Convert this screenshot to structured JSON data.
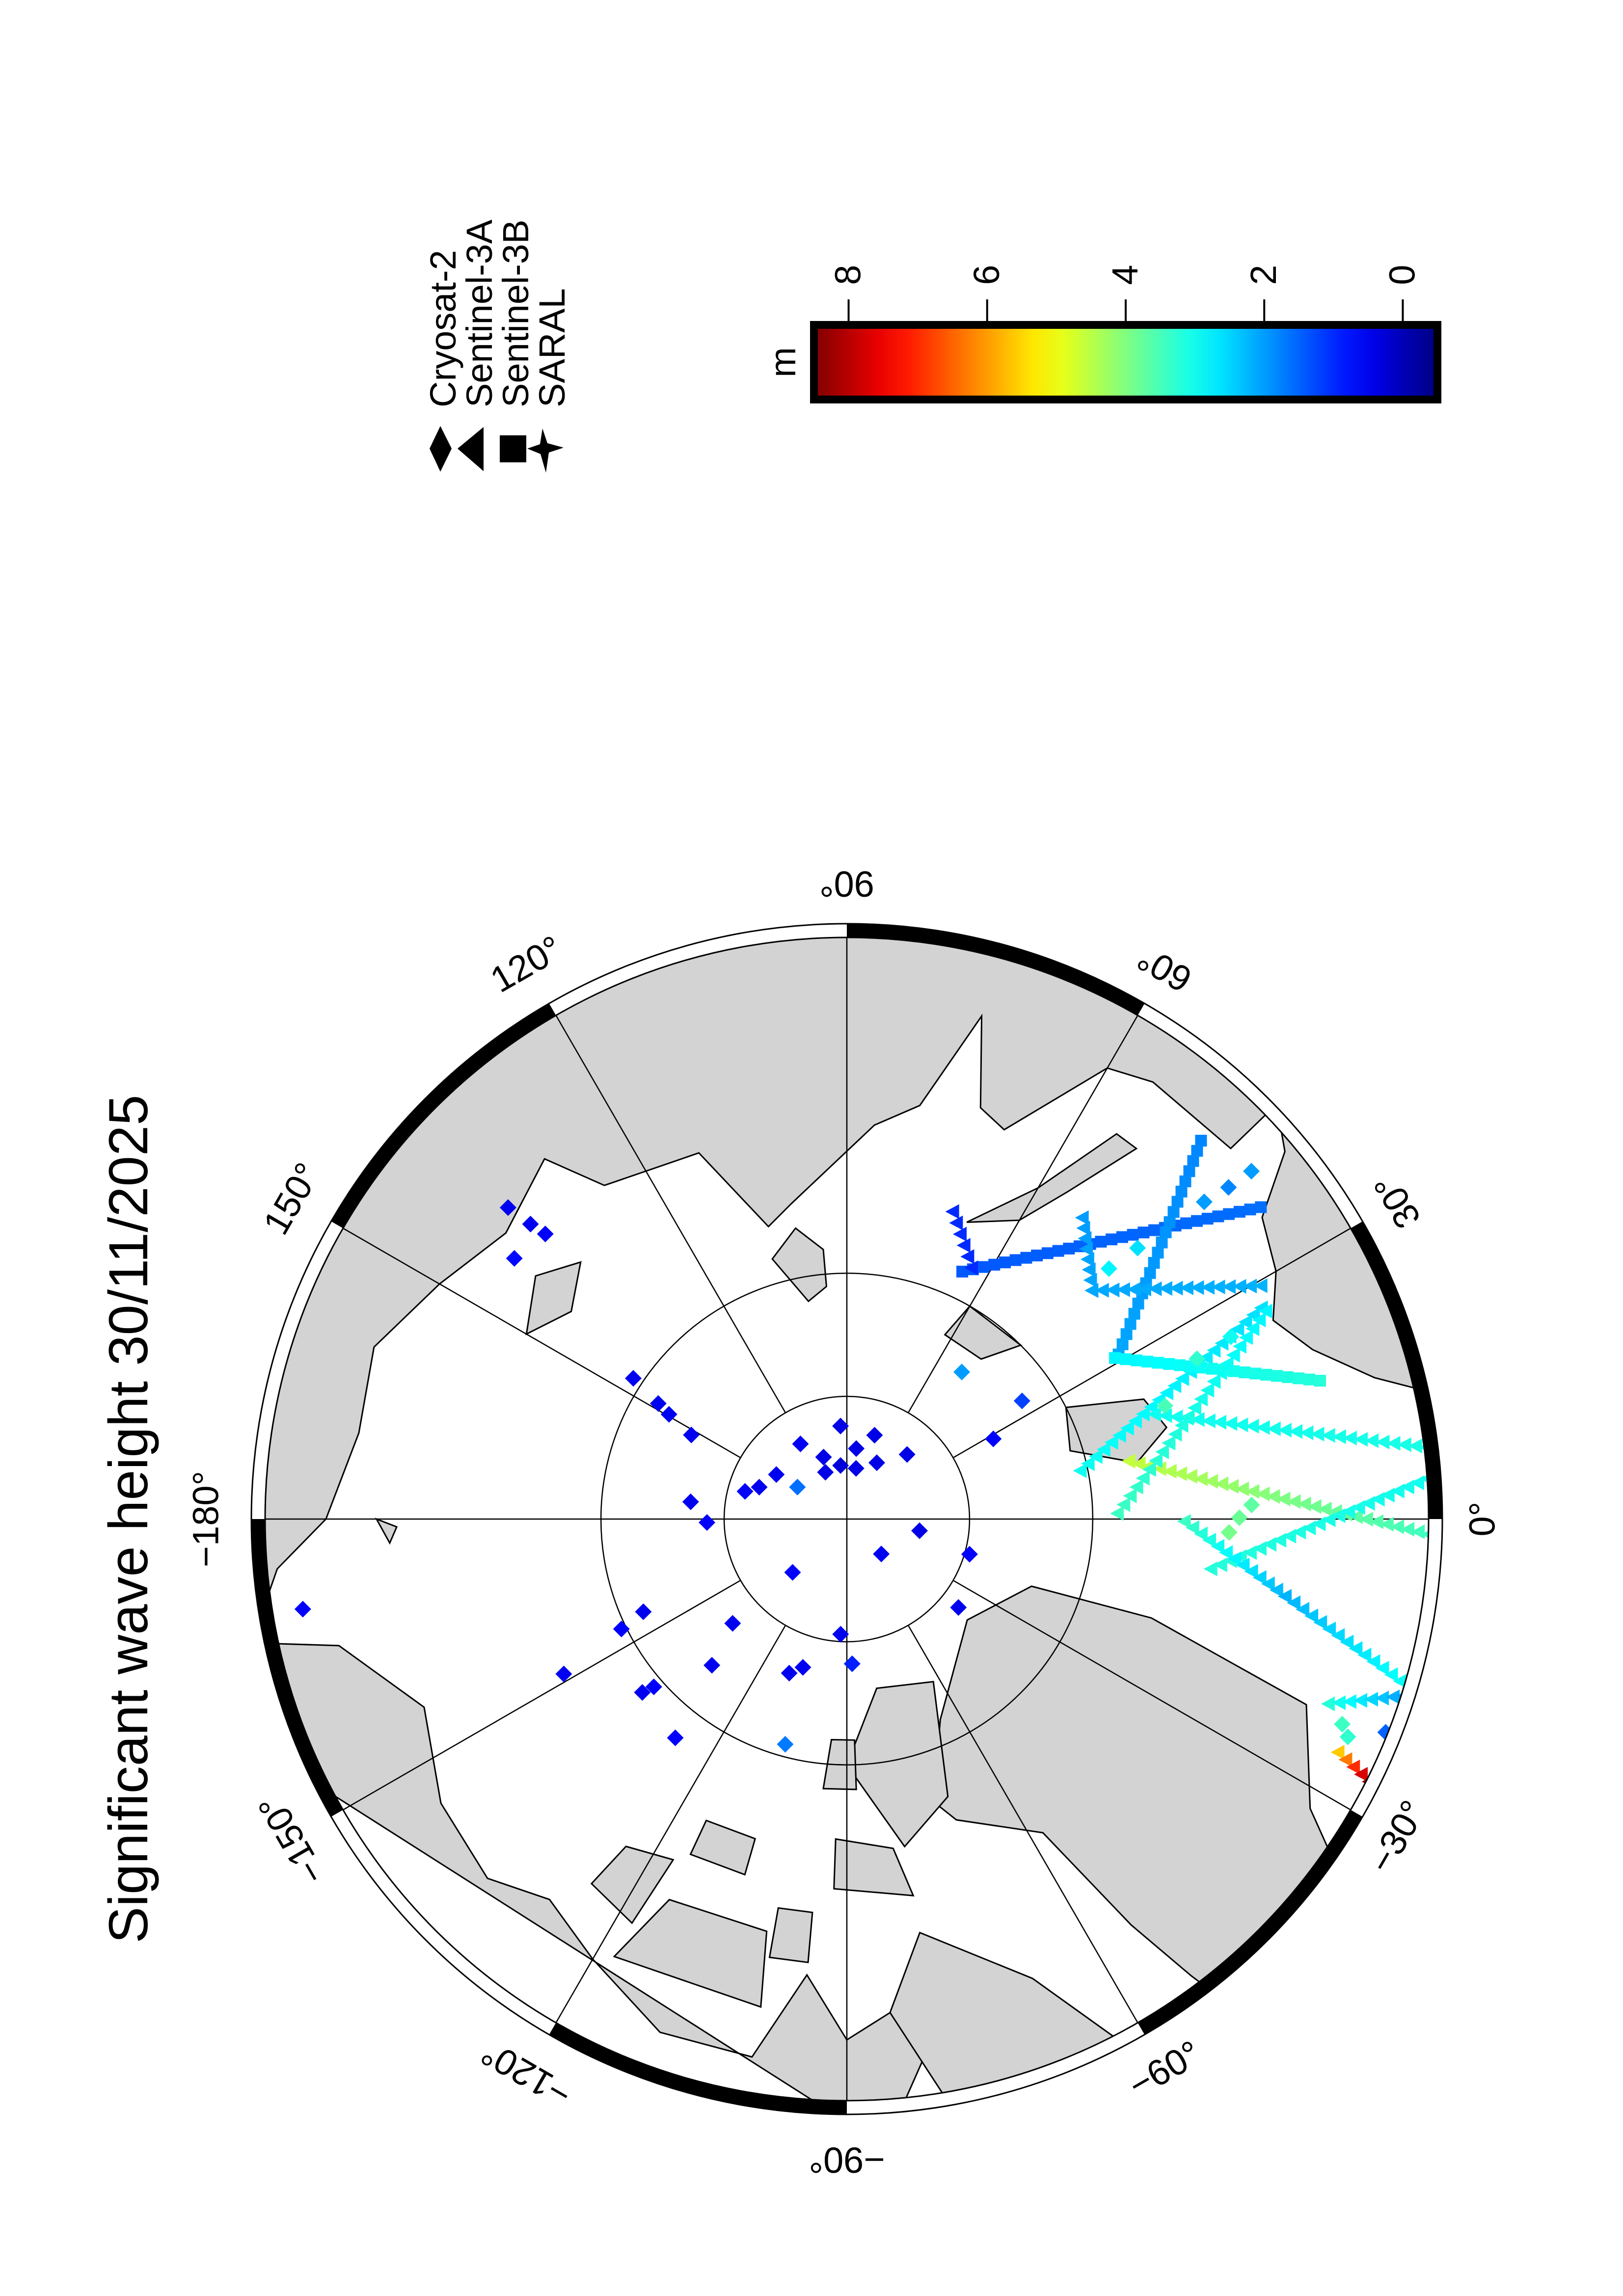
{
  "title": "Significant wave height 30/11/2025",
  "legend": [
    {
      "label": "Cryosat-2",
      "symbol": "diamond"
    },
    {
      "label": "Sentinel-3A",
      "symbol": "triangle"
    },
    {
      "label": "Sentinel-3B",
      "symbol": "square"
    },
    {
      "label": "SARAL",
      "symbol": "star"
    }
  ],
  "colorbar": {
    "unit": "m",
    "colormap": "jet",
    "range": [
      -0.5,
      8.5
    ],
    "ticks": [
      {
        "value": 0,
        "label": "0"
      },
      {
        "value": 2,
        "label": "2"
      },
      {
        "value": 4,
        "label": "4"
      },
      {
        "value": 6,
        "label": "6"
      },
      {
        "value": 8,
        "label": "8"
      }
    ]
  },
  "map": {
    "projection": "north-polar-stereographic",
    "min_latitude": 66.5,
    "parallels": [
      85,
      80
    ],
    "land_color": "#d3d3d3",
    "meridian_labels": [
      {
        "lon": 0,
        "label": "0°"
      },
      {
        "lon": 30,
        "label": "30°"
      },
      {
        "lon": 60,
        "label": "60°"
      },
      {
        "lon": 90,
        "label": "90°"
      },
      {
        "lon": 120,
        "label": "120°"
      },
      {
        "lon": 150,
        "label": "150°"
      },
      {
        "lon": 180,
        "label": "−180°"
      },
      {
        "lon": -150,
        "label": "−150°"
      },
      {
        "lon": -120,
        "label": "−120°"
      },
      {
        "lon": -90,
        "label": "−90°"
      },
      {
        "lon": -60,
        "label": "−60°"
      },
      {
        "lon": -30,
        "label": "−30°"
      }
    ],
    "land": [
      {
        "name": "eurasia",
        "coords": [
          [
            -1,
            60
          ],
          [
            3,
            58
          ],
          [
            6,
            58.2
          ],
          [
            5,
            61
          ],
          [
            10,
            64
          ],
          [
            15,
            68
          ],
          [
            20,
            70
          ],
          [
            25,
            71
          ],
          [
            30,
            70
          ],
          [
            36,
            69.3
          ],
          [
            40,
            67
          ],
          [
            44,
            66
          ],
          [
            44,
            68.5
          ],
          [
            55,
            68.5
          ],
          [
            60,
            69
          ],
          [
            68,
            73
          ],
          [
            72,
            72.5
          ],
          [
            75,
            69
          ],
          [
            80,
            73
          ],
          [
            86,
            74
          ],
          [
            100,
            77
          ],
          [
            105,
            77.7
          ],
          [
            112,
            74
          ],
          [
            126,
            73.3
          ],
          [
            130,
            71
          ],
          [
            140,
            72
          ],
          [
            150,
            71
          ],
          [
            160,
            69.7
          ],
          [
            170,
            70
          ],
          [
            180,
            69
          ],
          [
            -175,
            67
          ],
          [
            -170,
            66
          ],
          [
            -175,
            62
          ],
          [
            170,
            60
          ],
          [
            120,
            60
          ],
          [
            60,
            60
          ],
          [
            10,
            60
          ]
        ]
      },
      {
        "name": "north-america",
        "coords": [
          [
            -168,
            66
          ],
          [
            -166,
            68.9
          ],
          [
            -156,
            71.3
          ],
          [
            -145,
            70
          ],
          [
            -135,
            69.5
          ],
          [
            -128,
            70.5
          ],
          [
            -120,
            69.5
          ],
          [
            -110,
            68
          ],
          [
            -100,
            68
          ],
          [
            -95,
            71.5
          ],
          [
            -90,
            69
          ],
          [
            -85,
            70
          ],
          [
            -82,
            68
          ],
          [
            -85,
            66
          ],
          [
            -75,
            60
          ],
          [
            -170,
            60
          ]
        ]
      },
      {
        "name": "greenland",
        "coords": [
          [
            -73,
            78
          ],
          [
            -65,
            81
          ],
          [
            -40,
            83.6
          ],
          [
            -20,
            82
          ],
          [
            -18,
            77
          ],
          [
            -22,
            70
          ],
          [
            -32,
            68
          ],
          [
            -42,
            60
          ],
          [
            -50,
            62
          ],
          [
            -53,
            67
          ],
          [
            -55,
            70
          ],
          [
            -58,
            75
          ],
          [
            -70,
            77
          ]
        ]
      },
      {
        "name": "baffin-island",
        "coords": [
          [
            -80,
            73
          ],
          [
            -68,
            70
          ],
          [
            -62,
            66
          ],
          [
            -65,
            62
          ],
          [
            -78,
            64
          ],
          [
            -85,
            70
          ]
        ]
      },
      {
        "name": "ellesmere-island",
        "coords": [
          [
            -90,
            80
          ],
          [
            -80,
            83
          ],
          [
            -62,
            82.5
          ],
          [
            -70,
            78
          ],
          [
            -80,
            76.5
          ]
        ]
      },
      {
        "name": "axel-heiberg-island",
        "coords": [
          [
            -95,
            79
          ],
          [
            -88,
            79
          ],
          [
            -88,
            81
          ],
          [
            -94,
            81
          ]
        ]
      },
      {
        "name": "devon-island",
        "coords": [
          [
            -92,
            75
          ],
          [
            -80,
            74.5
          ],
          [
            -82,
            76.5
          ],
          [
            -92,
            77
          ]
        ]
      },
      {
        "name": "victoria-island",
        "coords": [
          [
            -118,
            70
          ],
          [
            -100,
            70
          ],
          [
            -101,
            73
          ],
          [
            -115,
            73
          ]
        ]
      },
      {
        "name": "banks-island",
        "coords": [
          [
            -125,
            72
          ],
          [
            -118,
            71.5
          ],
          [
            -117,
            74.5
          ],
          [
            -124,
            74
          ]
        ]
      },
      {
        "name": "melville-island",
        "coords": [
          [
            -115,
            75
          ],
          [
            -106,
            75
          ],
          [
            -106,
            76.5
          ],
          [
            -115,
            76.5
          ]
        ]
      },
      {
        "name": "prince-of-wales-island",
        "coords": [
          [
            -100,
            72
          ],
          [
            -95,
            72
          ],
          [
            -95,
            74
          ],
          [
            -100,
            74
          ]
        ]
      },
      {
        "name": "iceland",
        "coords": [
          [
            -24,
            64
          ],
          [
            -22,
            66.5
          ],
          [
            -15,
            66.5
          ],
          [
            -13,
            65
          ],
          [
            -18,
            63.4
          ]
        ]
      },
      {
        "name": "svalbard",
        "coords": [
          [
            11,
            78
          ],
          [
            17,
            80.5
          ],
          [
            27,
            80
          ],
          [
            22,
            77
          ],
          [
            16,
            76.5
          ]
        ]
      },
      {
        "name": "novaya-zemlya",
        "coords": [
          [
            52,
            71
          ],
          [
            56,
            74
          ],
          [
            60,
            76
          ],
          [
            68,
            77
          ],
          [
            60,
            74.5
          ],
          [
            55,
            71
          ]
        ]
      },
      {
        "name": "franz-josef-land",
        "coords": [
          [
            45,
            80
          ],
          [
            60,
            80
          ],
          [
            62,
            81.5
          ],
          [
            50,
            81.5
          ]
        ]
      },
      {
        "name": "severnaya-zemlya",
        "coords": [
          [
            95,
            79
          ],
          [
            100,
            78
          ],
          [
            106,
            79
          ],
          [
            100,
            81
          ],
          [
            95,
            80.5
          ]
        ]
      },
      {
        "name": "new-siberian-islands",
        "coords": [
          [
            136,
            75
          ],
          [
            142,
            74
          ],
          [
            150,
            75
          ],
          [
            143,
            76
          ]
        ]
      },
      {
        "name": "wrangel-island",
        "coords": [
          [
            -180,
            71
          ],
          [
            -177,
            71.5
          ],
          [
            -179,
            71.8
          ]
        ]
      }
    ]
  },
  "chart_data": {
    "type": "scatter",
    "value_label": "m",
    "color_range": [
      -0.5,
      8.5
    ],
    "tracks": [
      {
        "satellite": "Sentinel-3B",
        "symbol": "square",
        "points": [
          [
            65,
            78.9,
            1.4
          ],
          [
            37,
            69.1,
            1.6
          ]
        ]
      },
      {
        "satellite": "Sentinel-3B",
        "symbol": "square",
        "points": [
          [
            46.9,
            69.1,
            1.8
          ],
          [
            31.2,
            77.1,
            2.1
          ]
        ]
      },
      {
        "satellite": "Sentinel-3A",
        "symbol": "triangle",
        "points": [
          [
            52,
            74.5,
            2.0
          ],
          [
            43,
            76.4,
            2.1
          ],
          [
            29.4,
            70.8,
            2.2
          ]
        ]
      },
      {
        "satellite": "Sentinel-3A",
        "symbol": "triangle",
        "points": [
          [
            71,
            76.8,
            1.0
          ],
          [
            63.6,
            78.6,
            1.0
          ]
        ]
      },
      {
        "satellite": "Sentinel-3A",
        "symbol": "triangle",
        "points": [
          [
            27,
            71.2,
            2.6
          ],
          [
            11.7,
            80.3,
            3.0
          ]
        ]
      },
      {
        "satellite": "Sentinel-3B",
        "symbol": "square",
        "points": [
          [
            31,
            77.3,
            2.8
          ],
          [
            16.3,
            70.1,
            3.2
          ]
        ]
      },
      {
        "satellite": "Sentinel-3A",
        "symbol": "triangle",
        "points": [
          [
            18.8,
            76.8,
            3.0
          ],
          [
            6.8,
            66.1,
            3.1
          ]
        ]
      },
      {
        "satellite": "Sentinel-3A",
        "symbol": "triangle",
        "points": [
          [
            11.6,
            78.3,
            4.6
          ],
          [
            -1.5,
            66.6,
            3.4
          ]
        ]
      },
      {
        "satellite": "Sentinel-3A",
        "symbol": "triangle",
        "points": [
          [
            -7.8,
            75.1,
            3.2
          ],
          [
            4.3,
            66.2,
            3.0
          ]
        ]
      },
      {
        "satellite": "Sentinel-3A",
        "symbol": "triangle",
        "points": [
          [
            1.2,
            79,
            3.4
          ],
          [
            26.4,
            71.1,
            2.8
          ]
        ]
      },
      {
        "satellite": "Sentinel-3A",
        "symbol": "triangle",
        "points": [
          [
            -0.4,
            76.3,
            3.4
          ],
          [
            -10,
            72,
            2.2
          ],
          [
            -16.7,
            66.4,
            3.0
          ]
        ]
      },
      {
        "satellite": "Sentinel-3A",
        "symbol": "triangle",
        "points": [
          [
            -21,
            69.2,
            3.2
          ],
          [
            -17.6,
            66.5,
            2.0
          ]
        ]
      },
      {
        "satellite": "Sentinel-3A",
        "symbol": "triangle",
        "points": [
          [
            -25.4,
            68.1,
            5.6
          ],
          [
            -26.7,
            66.5,
            8.4
          ]
        ]
      }
    ],
    "points": [
      {
        "satellite": "Cryosat-2",
        "symbol": "diamond",
        "values": [
          [
            93.9,
            86.2,
            0.4
          ],
          [
            71.7,
            86.4,
            0.4
          ],
          [
            121.7,
            86.4,
            0.5
          ],
          [
            47,
            86.4,
            0.4
          ],
          [
            82.4,
            87.1,
            0.4
          ],
          [
            110.6,
            87.3,
            0.4
          ],
          [
            62,
            87.4,
            0.4
          ],
          [
            96.7,
            87.8,
            0.3
          ],
          [
            114.6,
            87.9,
            0.4
          ],
          [
            79.7,
            87.9,
            0.4
          ],
          [
            147.7,
            86.6,
            0.5
          ],
          [
            160,
            86.2,
            0.5
          ],
          [
            164.8,
            85.7,
            0.6
          ],
          [
            147.1,
            87.6,
            1.6
          ],
          [
            173.7,
            83.6,
            0.5
          ],
          [
            -178.6,
            84.3,
            0.6
          ],
          [
            -9.1,
            87,
            0.4
          ],
          [
            -45.4,
            88,
            0.5
          ],
          [
            -135.5,
            86.9,
            0.6
          ],
          [
            -16,
            84.8,
            0.6
          ],
          [
            -38.4,
            84.2,
            0.5
          ],
          [
            -155.5,
            80.9,
            0.5
          ],
          [
            -154,
            79.8,
            0.6
          ],
          [
            -137.6,
            83.7,
            0.5
          ],
          [
            -93.1,
            85.3,
            0.5
          ],
          [
            -132.7,
            81.9,
            0.5
          ],
          [
            -110.5,
            83.3,
            0.5
          ],
          [
            -106.5,
            83.7,
            0.5
          ],
          [
            -87.9,
            84.1,
            0.9
          ],
          [
            -151.3,
            76.9,
            0.5
          ],
          [
            -139.7,
            79.1,
            0.5
          ],
          [
            -139,
            79.6,
            0.6
          ],
          [
            -128.1,
            78.7,
            0.6
          ],
          [
            -105.3,
            80.5,
            1.7
          ],
          [
            -170.6,
            67.8,
            0.6
          ],
          [
            146.6,
            79.6,
            0.5
          ],
          [
            148.5,
            81,
            0.5
          ],
          [
            149.5,
            81.6,
            0.5
          ],
          [
            151.6,
            82.8,
            0.5
          ],
          [
            137.4,
            71.4,
            0.5
          ],
          [
            137,
            72.5,
            0.5
          ],
          [
            136.6,
            73.2,
            0.6
          ],
          [
            141.9,
            72.9,
            0.7
          ],
          [
            28.7,
            83.2,
            0.6
          ],
          [
            52,
            82.4,
            2.0
          ],
          [
            34,
            81.4,
            1.2
          ],
          [
            -21.6,
            66.7,
            1.5
          ],
          [
            41,
            69.6,
            1.8
          ],
          [
            40.7,
            68.5,
            2.0
          ],
          [
            41.6,
            70.7,
            2.0
          ],
          [
            43,
            73.9,
            2.6
          ],
          [
            43.7,
            75.3,
            2.8
          ],
          [
            24.6,
            74.4,
            3.3
          ],
          [
            25.4,
            72.8,
            3.0
          ],
          [
            19.6,
            76.3,
            3.5
          ],
          [
            0.2,
            74.1,
            3.8
          ],
          [
            -2,
            74.5,
            3.9
          ],
          [
            2,
            73.6,
            3.7
          ],
          [
            -22.5,
            68.4,
            3.4
          ],
          [
            -23.5,
            68.0,
            3.3
          ]
        ]
      }
    ]
  }
}
